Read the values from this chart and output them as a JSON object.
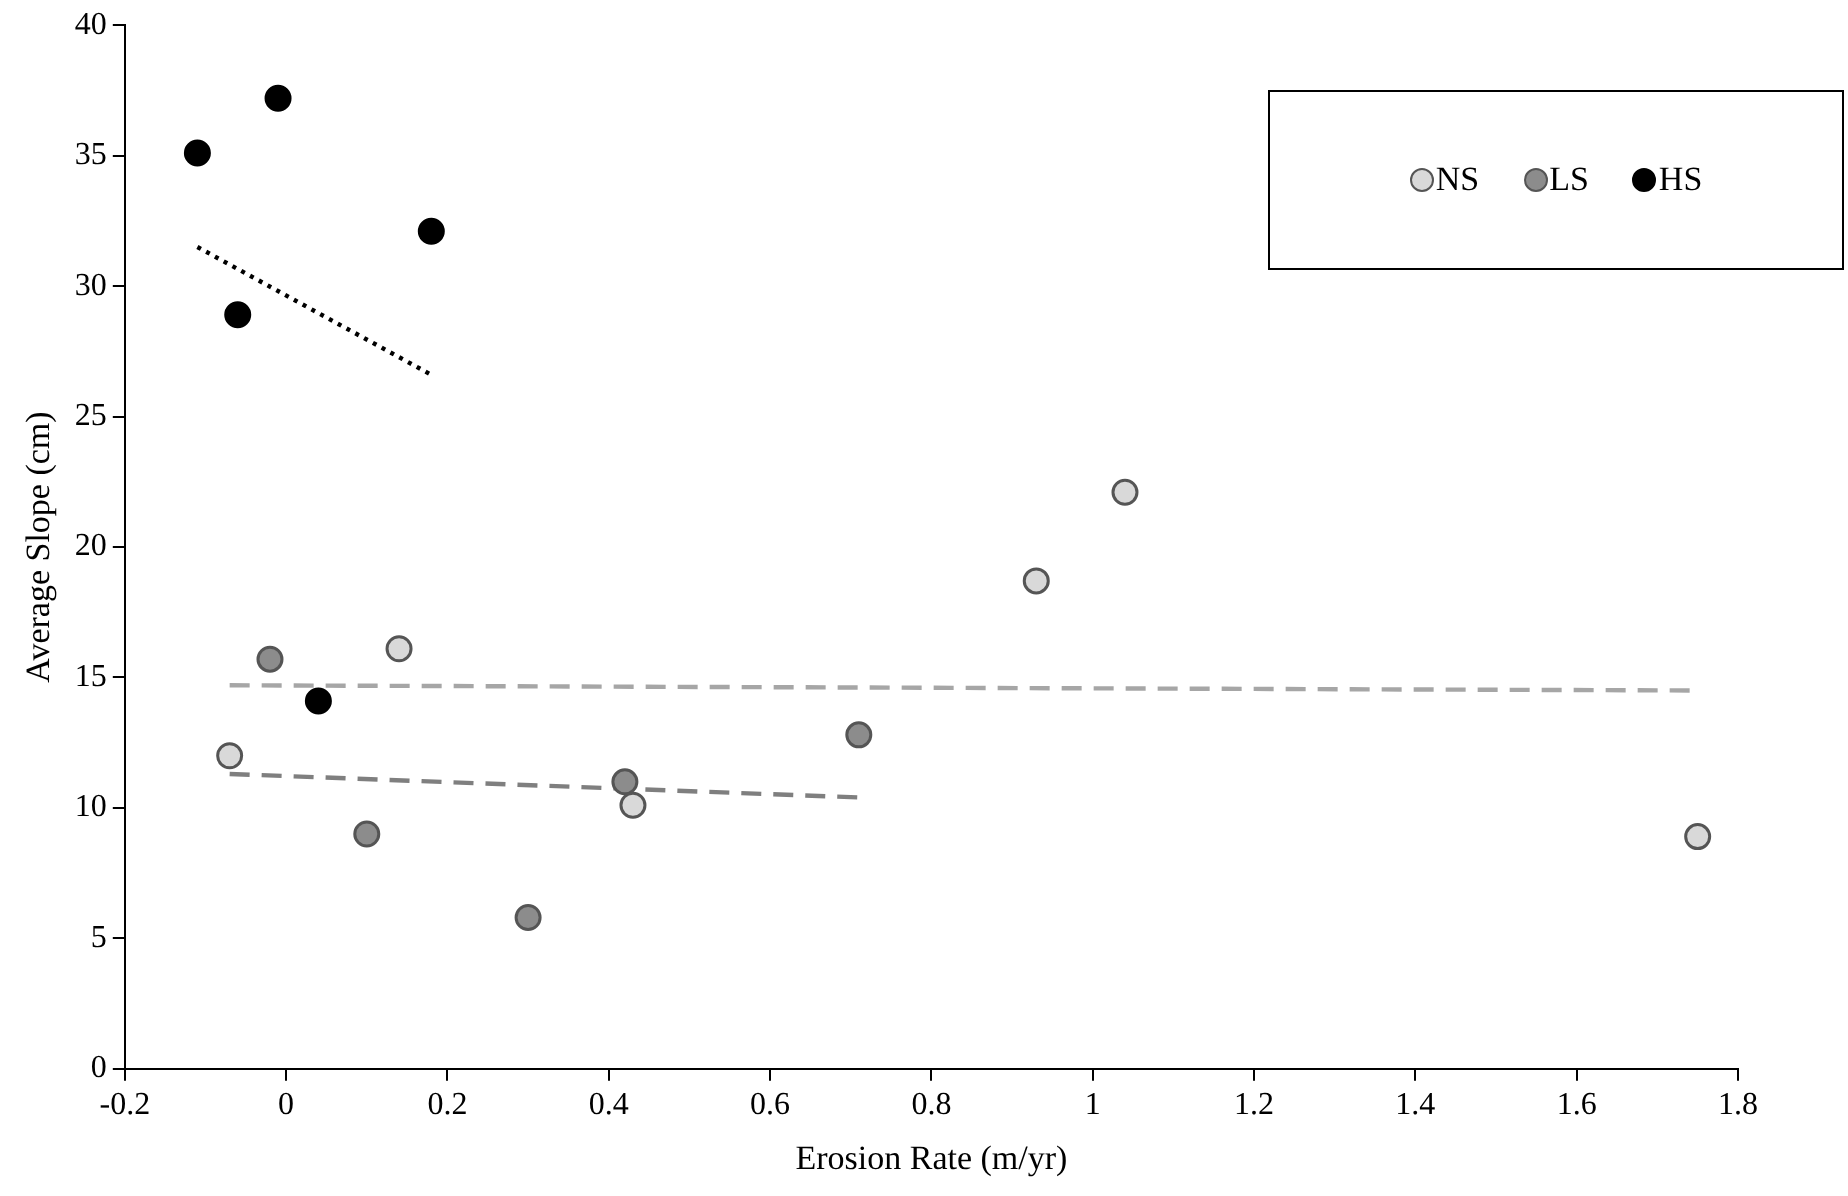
{
  "chart_data": {
    "type": "scatter",
    "xlabel": "Erosion Rate (m/yr)",
    "ylabel": "Average Slope (cm)",
    "xlim": [
      -0.2,
      1.8
    ],
    "xticks": [
      {
        "value": -0.2,
        "label": "-0.2"
      },
      0,
      {
        "value": 0.2,
        "label": "0.2"
      },
      {
        "value": 0.4,
        "label": "0.4"
      },
      {
        "value": 0.6,
        "label": "0.6"
      },
      {
        "value": 0.8,
        "label": "0.8"
      },
      1,
      {
        "value": 1.2,
        "label": "1.2"
      },
      {
        "value": 1.4,
        "label": "1.4"
      },
      {
        "value": 1.6,
        "label": "1.6"
      },
      {
        "value": 1.8,
        "label": "1.8"
      }
    ],
    "ylim": [
      0,
      40
    ],
    "yticks": [
      0,
      5,
      10,
      15,
      20,
      25,
      30,
      35,
      40
    ],
    "grid": false,
    "legend": "top right",
    "marker": "circle",
    "series": [
      {
        "name": "NS",
        "color": "#d9d9d9",
        "x": [
          -0.07,
          0.14,
          0.43,
          0.93,
          1.04,
          1.75
        ],
        "values": [
          12,
          16.1,
          10.1,
          18.7,
          22.1,
          8.9
        ]
      },
      {
        "name": "LS",
        "color": "#8c8c8c",
        "x": [
          -0.02,
          0.1,
          0.3,
          0.42,
          0.71
        ],
        "values": [
          15.7,
          9,
          5.8,
          11,
          12.8
        ]
      },
      {
        "name": "HS",
        "color": "#000000",
        "x": [
          -0.11,
          -0.01,
          -0.06,
          0.18,
          0.04
        ],
        "values": [
          35.1,
          37.2,
          28.9,
          32.1,
          14.1
        ]
      },
      {
        "type": "line",
        "color": "#a6a6a6",
        "line_style": "dashed",
        "marker": "none",
        "x": [
          -0.07,
          1.75
        ],
        "values": [
          14.7,
          14.5
        ]
      },
      {
        "type": "line",
        "color": "#7f7f7f",
        "line_style": "dashed",
        "marker": "none",
        "x": [
          -0.07,
          0.71
        ],
        "values": [
          11.3,
          10.4
        ]
      },
      {
        "type": "line",
        "color": "#000000",
        "line_style": "dotted",
        "marker": "none",
        "x": [
          -0.11,
          0.18
        ],
        "values": [
          31.5,
          26.6
        ]
      }
    ]
  }
}
